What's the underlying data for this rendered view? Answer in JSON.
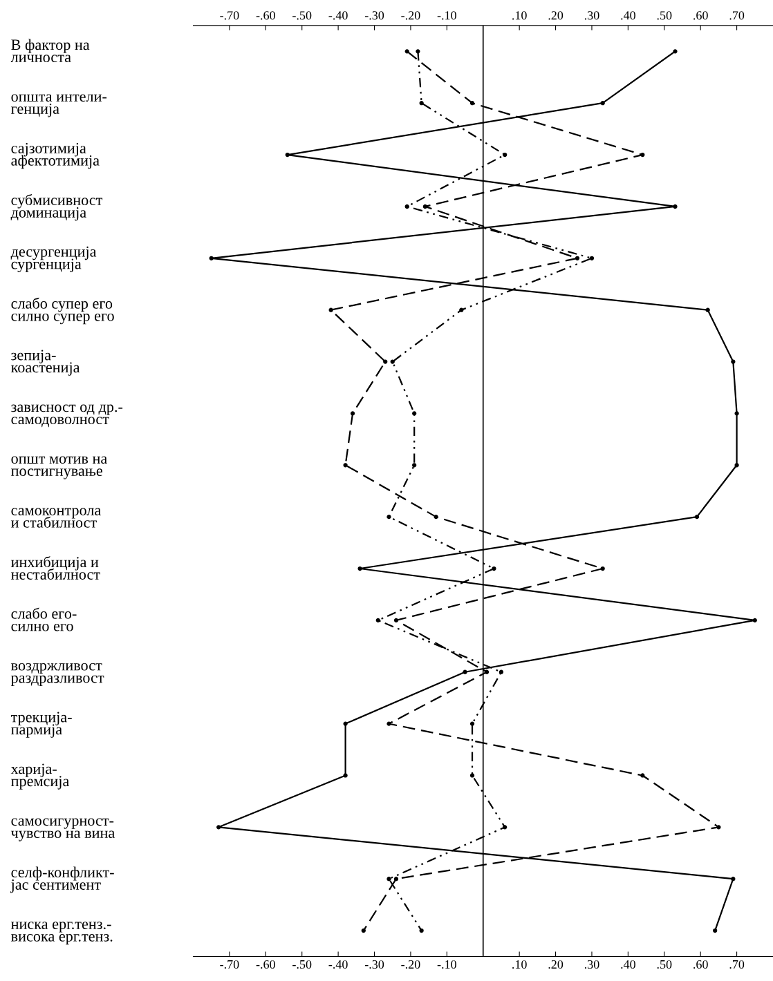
{
  "chart_data": {
    "type": "line",
    "orientation": "horizontal",
    "categories": [
      "В фактор на\nличноста",
      "општа интели-\nгенција",
      "сајзотимија\nафектотимија",
      "субмисивност\nдоминација",
      "десургенција\nсургенција",
      "слабо супер его\nсилно супер его",
      "зепија-\nкоастенија",
      "зависност од др.-\nсамодоволност",
      "општ мотив на\nпостигнување",
      "самоконтрола\nи стабилност",
      "инхибиција и\nнестабилност",
      "слабо его-\nсилно его",
      "воздржливост\nраздразливост",
      "трекција-\nпармија",
      "харија-\nпремсија",
      "самосигурност-\nчувство на вина",
      "селф-конфликт-\nјас сентимент",
      "ниска ерг.тенз.-\nвисока ерг.тенз."
    ],
    "series": [
      {
        "color": "#000000",
        "line_style": "solid",
        "values": [
          0.53,
          0.33,
          -0.54,
          0.53,
          -0.75,
          0.62,
          0.69,
          0.7,
          0.7,
          0.59,
          -0.34,
          0.75,
          -0.05,
          -0.38,
          -0.38,
          -0.73,
          0.69,
          0.64
        ]
      },
      {
        "color": "#000000",
        "line_style": "dashed",
        "values": [
          -0.21,
          -0.03,
          0.44,
          -0.16,
          0.26,
          -0.42,
          -0.27,
          -0.36,
          -0.38,
          -0.13,
          0.33,
          -0.24,
          0.01,
          -0.26,
          0.44,
          0.65,
          -0.24,
          -0.33
        ]
      },
      {
        "color": "#000000",
        "line_style": "dotted",
        "values": [
          -0.18,
          -0.17,
          0.06,
          -0.21,
          0.3,
          -0.06,
          -0.25,
          -0.19,
          -0.19,
          -0.26,
          0.03,
          -0.29,
          0.05,
          -0.03,
          -0.03,
          0.06,
          -0.26,
          -0.17
        ]
      }
    ],
    "marker": "circle",
    "xlim": [
      -0.8,
      0.8
    ],
    "xticks": [
      {
        "value": -0.7,
        "label": "-.70"
      },
      {
        "value": -0.6,
        "label": "-.60"
      },
      {
        "value": -0.5,
        "label": "-.50"
      },
      {
        "value": -0.4,
        "label": "-.40"
      },
      {
        "value": -0.3,
        "label": "-.30"
      },
      {
        "value": -0.2,
        "label": "-.20"
      },
      {
        "value": -0.1,
        "label": "-.10"
      },
      {
        "value": 0.1,
        "label": ".10"
      },
      {
        "value": 0.2,
        "label": ".20"
      },
      {
        "value": 0.3,
        "label": ".30"
      },
      {
        "value": 0.4,
        "label": ".40"
      },
      {
        "value": 0.5,
        "label": ".50"
      },
      {
        "value": 0.6,
        "label": ".60"
      },
      {
        "value": 0.7,
        "label": ".70"
      }
    ],
    "x2lim": [
      -0.8,
      0.8
    ],
    "x2ticks": [
      {
        "value": -0.7,
        "label": "-.70"
      },
      {
        "value": -0.6,
        "label": "-.60"
      },
      {
        "value": -0.5,
        "label": "-.50"
      },
      {
        "value": -0.4,
        "label": "-.40"
      },
      {
        "value": -0.3,
        "label": "-.30"
      },
      {
        "value": -0.2,
        "label": "-.20"
      },
      {
        "value": -0.1,
        "label": "-.10"
      },
      {
        "value": 0.1,
        "label": ".10"
      },
      {
        "value": 0.2,
        "label": ".20"
      },
      {
        "value": 0.3,
        "label": ".30"
      },
      {
        "value": 0.4,
        "label": ".40"
      },
      {
        "value": 0.5,
        "label": ".50"
      },
      {
        "value": 0.6,
        "label": ".60"
      },
      {
        "value": 0.7,
        "label": ".70"
      }
    ],
    "ref_lines": [
      {
        "axis": "x",
        "value": 0,
        "color": "#000000",
        "line_style": "solid"
      }
    ],
    "grid": false
  }
}
